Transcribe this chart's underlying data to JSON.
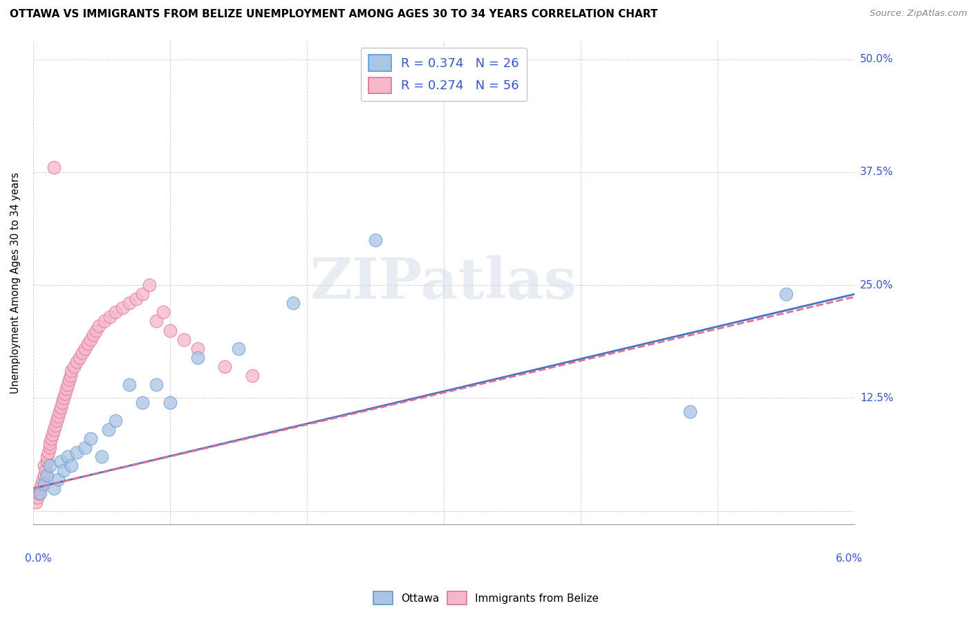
{
  "title": "OTTAWA VS IMMIGRANTS FROM BELIZE UNEMPLOYMENT AMONG AGES 30 TO 34 YEARS CORRELATION CHART",
  "source": "Source: ZipAtlas.com",
  "ylabel": "Unemployment Among Ages 30 to 34 years",
  "x_min": 0.0,
  "x_max": 6.0,
  "y_min": -1.5,
  "y_max": 52.0,
  "color_ottawa": "#aac4e4",
  "color_ottawa_edge": "#5b9bd5",
  "color_belize": "#f5b8ca",
  "color_belize_edge": "#e07090",
  "color_line_ottawa": "#4472c4",
  "color_line_belize": "#e07090",
  "color_legend_text": "#3355cc",
  "color_grid": "#cccccc",
  "background_color": "#ffffff",
  "legend_entry1": "R = 0.374   N = 26",
  "legend_entry2": "R = 0.274   N = 56",
  "watermark": "ZIPatlas",
  "ottawa_x": [
    0.05,
    0.08,
    0.1,
    0.12,
    0.15,
    0.18,
    0.2,
    0.22,
    0.25,
    0.28,
    0.32,
    0.38,
    0.42,
    0.5,
    0.55,
    0.6,
    0.7,
    0.8,
    0.9,
    1.0,
    1.2,
    1.5,
    1.9,
    2.5,
    4.8,
    5.5
  ],
  "ottawa_y": [
    2.0,
    3.0,
    4.0,
    5.0,
    2.5,
    3.5,
    5.5,
    4.5,
    6.0,
    5.0,
    6.5,
    7.0,
    8.0,
    6.0,
    9.0,
    10.0,
    14.0,
    12.0,
    14.0,
    12.0,
    17.0,
    18.0,
    23.0,
    30.0,
    11.0,
    24.0
  ],
  "belize_x": [
    0.02,
    0.03,
    0.04,
    0.05,
    0.06,
    0.07,
    0.08,
    0.08,
    0.09,
    0.1,
    0.1,
    0.11,
    0.12,
    0.12,
    0.13,
    0.14,
    0.15,
    0.16,
    0.17,
    0.18,
    0.19,
    0.2,
    0.21,
    0.22,
    0.23,
    0.24,
    0.25,
    0.26,
    0.27,
    0.28,
    0.3,
    0.32,
    0.34,
    0.36,
    0.38,
    0.4,
    0.42,
    0.44,
    0.46,
    0.48,
    0.52,
    0.56,
    0.6,
    0.65,
    0.7,
    0.75,
    0.8,
    0.85,
    0.9,
    0.95,
    1.0,
    1.1,
    1.2,
    1.4,
    1.6,
    0.15
  ],
  "belize_y": [
    1.0,
    1.5,
    2.0,
    2.5,
    3.0,
    3.5,
    4.0,
    5.0,
    4.5,
    5.5,
    6.0,
    6.5,
    7.0,
    7.5,
    8.0,
    8.5,
    9.0,
    9.5,
    10.0,
    10.5,
    11.0,
    11.5,
    12.0,
    12.5,
    13.0,
    13.5,
    14.0,
    14.5,
    15.0,
    15.5,
    16.0,
    16.5,
    17.0,
    17.5,
    18.0,
    18.5,
    19.0,
    19.5,
    20.0,
    20.5,
    21.0,
    21.5,
    22.0,
    22.5,
    23.0,
    23.5,
    24.0,
    25.0,
    21.0,
    22.0,
    20.0,
    19.0,
    18.0,
    16.0,
    15.0,
    38.0
  ],
  "ott_line_x0": 0.0,
  "ott_line_y0": 2.5,
  "ott_line_x1": 6.0,
  "ott_line_y1": 24.0,
  "bel_line_x0": 0.0,
  "bel_line_y0": 2.5,
  "bel_line_x1": 6.0,
  "bel_line_y1": 24.0
}
